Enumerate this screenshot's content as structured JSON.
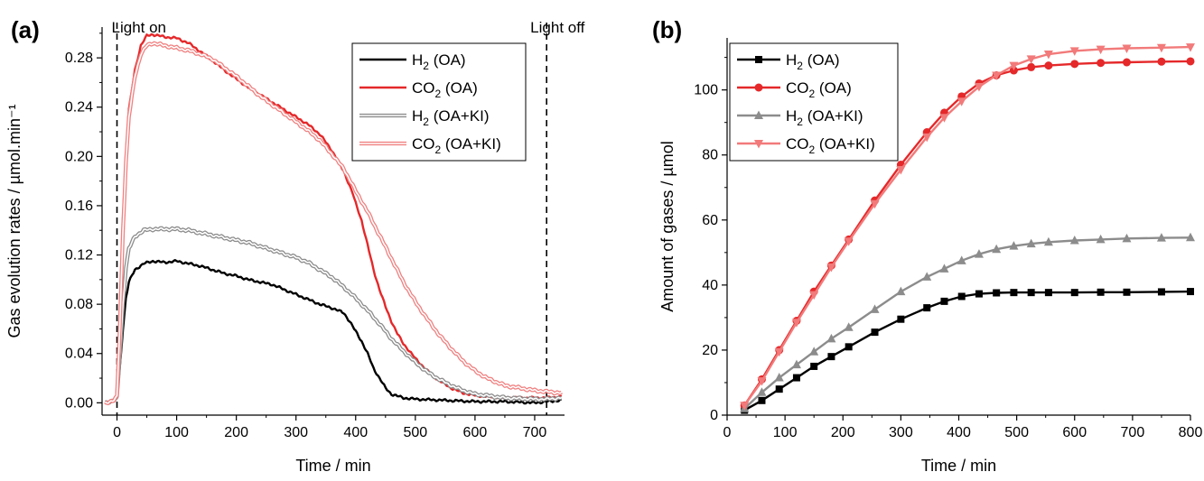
{
  "chart_data": [
    {
      "panel_label": "(a)",
      "type": "line",
      "xlabel": "Time / min",
      "ylabel": "Gas evolution rates / µmol.min⁻¹",
      "xlim": [
        -25,
        750
      ],
      "ylim": [
        -0.01,
        0.305
      ],
      "xticks": [
        0,
        100,
        200,
        300,
        400,
        500,
        600,
        700
      ],
      "yticks": [
        0.0,
        0.04,
        0.08,
        0.12,
        0.16,
        0.2,
        0.24,
        0.28
      ],
      "ytick_decimals": 2,
      "grid": false,
      "legend_position": "top-right",
      "annotations": [
        {
          "text": "Light on",
          "x": 0
        },
        {
          "text": "Light off",
          "x": 720
        }
      ],
      "series": [
        {
          "name": "H2 (OA)",
          "color": "#000000",
          "style": "solid",
          "points": [
            [
              -20,
              0.0
            ],
            [
              -5,
              0.002
            ],
            [
              0,
              0.004
            ],
            [
              5,
              0.03
            ],
            [
              10,
              0.06
            ],
            [
              15,
              0.085
            ],
            [
              20,
              0.098
            ],
            [
              30,
              0.108
            ],
            [
              45,
              0.113
            ],
            [
              60,
              0.115
            ],
            [
              80,
              0.114
            ],
            [
              100,
              0.115
            ],
            [
              120,
              0.113
            ],
            [
              140,
              0.111
            ],
            [
              160,
              0.108
            ],
            [
              180,
              0.105
            ],
            [
              200,
              0.103
            ],
            [
              220,
              0.1
            ],
            [
              240,
              0.098
            ],
            [
              260,
              0.096
            ],
            [
              280,
              0.092
            ],
            [
              300,
              0.088
            ],
            [
              320,
              0.084
            ],
            [
              340,
              0.08
            ],
            [
              360,
              0.077
            ],
            [
              380,
              0.073
            ],
            [
              390,
              0.066
            ],
            [
              400,
              0.058
            ],
            [
              410,
              0.05
            ],
            [
              420,
              0.04
            ],
            [
              430,
              0.028
            ],
            [
              440,
              0.02
            ],
            [
              450,
              0.012
            ],
            [
              460,
              0.007
            ],
            [
              480,
              0.004
            ],
            [
              500,
              0.003
            ],
            [
              550,
              0.002
            ],
            [
              600,
              0.001
            ],
            [
              650,
              0.001
            ],
            [
              700,
              0.0
            ],
            [
              720,
              0.001
            ],
            [
              745,
              0.002
            ]
          ]
        },
        {
          "name": "CO2 (OA)",
          "color": "#e5282a",
          "style": "solid",
          "points": [
            [
              -20,
              0.0
            ],
            [
              -5,
              0.002
            ],
            [
              0,
              0.005
            ],
            [
              5,
              0.07
            ],
            [
              10,
              0.15
            ],
            [
              15,
              0.2
            ],
            [
              20,
              0.238
            ],
            [
              30,
              0.27
            ],
            [
              40,
              0.29
            ],
            [
              50,
              0.298
            ],
            [
              60,
              0.299
            ],
            [
              80,
              0.297
            ],
            [
              100,
              0.296
            ],
            [
              120,
              0.292
            ],
            [
              140,
              0.285
            ],
            [
              160,
              0.278
            ],
            [
              180,
              0.27
            ],
            [
              200,
              0.263
            ],
            [
              220,
              0.256
            ],
            [
              240,
              0.25
            ],
            [
              260,
              0.244
            ],
            [
              280,
              0.238
            ],
            [
              300,
              0.232
            ],
            [
              320,
              0.226
            ],
            [
              340,
              0.218
            ],
            [
              360,
              0.205
            ],
            [
              380,
              0.188
            ],
            [
              395,
              0.17
            ],
            [
              400,
              0.162
            ],
            [
              410,
              0.148
            ],
            [
              420,
              0.128
            ],
            [
              430,
              0.108
            ],
            [
              440,
              0.092
            ],
            [
              450,
              0.078
            ],
            [
              460,
              0.066
            ],
            [
              470,
              0.056
            ],
            [
              480,
              0.048
            ],
            [
              500,
              0.036
            ],
            [
              520,
              0.026
            ],
            [
              540,
              0.018
            ],
            [
              560,
              0.012
            ],
            [
              580,
              0.008
            ],
            [
              600,
              0.006
            ],
            [
              650,
              0.004
            ],
            [
              700,
              0.004
            ],
            [
              720,
              0.004
            ],
            [
              745,
              0.005
            ]
          ]
        },
        {
          "name": "H2 (OA+KI)",
          "color": "#8c8c8c",
          "style": "double",
          "points": [
            [
              -20,
              0.0
            ],
            [
              -5,
              0.002
            ],
            [
              0,
              0.004
            ],
            [
              5,
              0.04
            ],
            [
              10,
              0.08
            ],
            [
              15,
              0.11
            ],
            [
              20,
              0.125
            ],
            [
              30,
              0.135
            ],
            [
              45,
              0.14
            ],
            [
              60,
              0.141
            ],
            [
              80,
              0.141
            ],
            [
              100,
              0.141
            ],
            [
              120,
              0.14
            ],
            [
              140,
              0.138
            ],
            [
              160,
              0.136
            ],
            [
              180,
              0.134
            ],
            [
              200,
              0.132
            ],
            [
              220,
              0.13
            ],
            [
              240,
              0.127
            ],
            [
              260,
              0.124
            ],
            [
              280,
              0.121
            ],
            [
              300,
              0.118
            ],
            [
              320,
              0.114
            ],
            [
              340,
              0.108
            ],
            [
              360,
              0.102
            ],
            [
              380,
              0.094
            ],
            [
              400,
              0.085
            ],
            [
              420,
              0.075
            ],
            [
              440,
              0.064
            ],
            [
              460,
              0.052
            ],
            [
              480,
              0.042
            ],
            [
              500,
              0.033
            ],
            [
              520,
              0.025
            ],
            [
              540,
              0.019
            ],
            [
              560,
              0.014
            ],
            [
              580,
              0.01
            ],
            [
              600,
              0.007
            ],
            [
              650,
              0.004
            ],
            [
              700,
              0.003
            ],
            [
              720,
              0.003
            ],
            [
              745,
              0.004
            ]
          ]
        },
        {
          "name": "CO2 (OA+KI)",
          "color": "#f08080",
          "style": "double",
          "points": [
            [
              -20,
              0.0
            ],
            [
              -5,
              0.002
            ],
            [
              0,
              0.005
            ],
            [
              5,
              0.065
            ],
            [
              10,
              0.14
            ],
            [
              15,
              0.195
            ],
            [
              20,
              0.232
            ],
            [
              30,
              0.265
            ],
            [
              40,
              0.283
            ],
            [
              50,
              0.29
            ],
            [
              60,
              0.292
            ],
            [
              80,
              0.29
            ],
            [
              100,
              0.288
            ],
            [
              120,
              0.286
            ],
            [
              140,
              0.283
            ],
            [
              160,
              0.279
            ],
            [
              180,
              0.272
            ],
            [
              200,
              0.265
            ],
            [
              220,
              0.257
            ],
            [
              240,
              0.249
            ],
            [
              260,
              0.242
            ],
            [
              280,
              0.235
            ],
            [
              300,
              0.228
            ],
            [
              320,
              0.221
            ],
            [
              340,
              0.213
            ],
            [
              360,
              0.202
            ],
            [
              380,
              0.19
            ],
            [
              400,
              0.172
            ],
            [
              420,
              0.155
            ],
            [
              440,
              0.136
            ],
            [
              460,
              0.117
            ],
            [
              480,
              0.098
            ],
            [
              500,
              0.082
            ],
            [
              520,
              0.068
            ],
            [
              540,
              0.055
            ],
            [
              560,
              0.044
            ],
            [
              580,
              0.034
            ],
            [
              600,
              0.026
            ],
            [
              620,
              0.02
            ],
            [
              650,
              0.014
            ],
            [
              700,
              0.01
            ],
            [
              720,
              0.009
            ],
            [
              745,
              0.008
            ]
          ]
        }
      ]
    },
    {
      "panel_label": "(b)",
      "type": "line",
      "xlabel": "Time / min",
      "ylabel": "Amount of gases / µmol",
      "xlim": [
        0,
        800
      ],
      "ylim": [
        0,
        116
      ],
      "xticks": [
        0,
        100,
        200,
        300,
        400,
        500,
        600,
        700,
        800
      ],
      "yticks": [
        0,
        20,
        40,
        60,
        80,
        100
      ],
      "ytick_decimals": 0,
      "grid": false,
      "legend_position": "top-left",
      "series": [
        {
          "name": "H2 (OA)",
          "color": "#000000",
          "marker": "square",
          "x": [
            30,
            60,
            90,
            120,
            150,
            180,
            210,
            255,
            300,
            345,
            375,
            405,
            435,
            465,
            495,
            525,
            555,
            600,
            645,
            690,
            750,
            800
          ],
          "values": [
            1.5,
            4.5,
            8,
            11.5,
            15,
            18,
            21,
            25.5,
            29.5,
            33,
            35,
            36.5,
            37.3,
            37.6,
            37.7,
            37.7,
            37.7,
            37.7,
            37.8,
            37.8,
            37.9,
            38
          ]
        },
        {
          "name": "CO2 (OA)",
          "color": "#e5282a",
          "marker": "circle",
          "x": [
            30,
            60,
            90,
            120,
            150,
            180,
            210,
            255,
            300,
            345,
            375,
            405,
            435,
            465,
            495,
            525,
            555,
            600,
            645,
            690,
            750,
            800
          ],
          "values": [
            3,
            11,
            20,
            29,
            38,
            46,
            54,
            66,
            77,
            87,
            93,
            98,
            102,
            104.5,
            106,
            107,
            107.5,
            108,
            108.3,
            108.5,
            108.7,
            108.8
          ]
        },
        {
          "name": "H2 (OA+KI)",
          "color": "#8c8c8c",
          "marker": "triangle-up",
          "x": [
            30,
            60,
            90,
            120,
            150,
            180,
            210,
            255,
            300,
            345,
            375,
            405,
            435,
            465,
            495,
            525,
            555,
            600,
            645,
            690,
            750,
            800
          ],
          "values": [
            2,
            7,
            11.5,
            15.5,
            19.5,
            23.5,
            27,
            32.5,
            38,
            42.5,
            45,
            47.5,
            49.5,
            51,
            52,
            52.7,
            53.2,
            53.7,
            54,
            54.3,
            54.5,
            54.6
          ]
        },
        {
          "name": "CO2 (OA+KI)",
          "color": "#f27a7a",
          "marker": "triangle-down",
          "x": [
            30,
            60,
            90,
            120,
            150,
            180,
            210,
            255,
            300,
            345,
            375,
            405,
            435,
            465,
            495,
            525,
            555,
            600,
            645,
            690,
            750,
            800
          ],
          "values": [
            3,
            10.5,
            19.5,
            28.5,
            37,
            45.5,
            53.5,
            65,
            75.5,
            85.5,
            91.5,
            96.5,
            101,
            104.5,
            107.5,
            109.5,
            111,
            112,
            112.5,
            112.8,
            113,
            113.2
          ]
        }
      ]
    }
  ]
}
